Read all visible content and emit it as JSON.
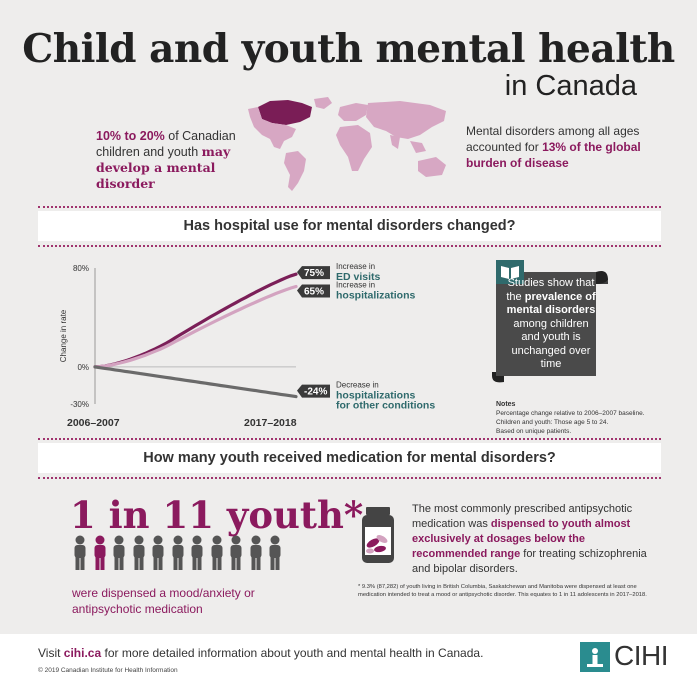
{
  "header": {
    "title": "Child and youth mental health",
    "subtitle": "in Canada"
  },
  "intro": {
    "left_part1": "10% to 20%",
    "left_part2": " of Canadian children and youth ",
    "left_part3": "may develop a mental disorder",
    "right_part1": "Mental disorders among all ages accounted for ",
    "right_part2": "13% of the global burden of disease"
  },
  "section1": {
    "heading": "Has hospital use for mental disorders changed?"
  },
  "chart_data": {
    "type": "line",
    "ylabel": "Change in rate",
    "ylim": [
      -30,
      80
    ],
    "yticks": [
      "80%",
      "0%",
      "-30%"
    ],
    "x": [
      "2006–2007",
      "2017–2018"
    ],
    "series": [
      {
        "name": "Increase in ED visits",
        "color": "#7b1f58",
        "end_value": 75,
        "label": "75%",
        "label_small": "Increase in",
        "label_big": "ED visits"
      },
      {
        "name": "Increase in hospitalizations",
        "color": "#d3a3c0",
        "end_value": 65,
        "label": "65%",
        "label_small": "Increase in",
        "label_big": "hospitalizations"
      },
      {
        "name": "Decrease in hospitalizations for other conditions",
        "color": "#6a6a6a",
        "end_value": -24,
        "label": "-24%",
        "label_small": "Decrease in",
        "label_big": "hospitalizations for other conditions"
      }
    ]
  },
  "scroll": {
    "text_pre": "Studies show that the ",
    "text_bold": "prevalence of mental disorders",
    "text_post": " among children and youth is unchanged over time"
  },
  "notes": {
    "heading": "Notes",
    "line1": "Percentage change relative to 2006–2007 baseline.",
    "line2": "Children and youth: Those age 5 to 24.",
    "line3": "Based on unique patients."
  },
  "section2": {
    "heading": "How many youth received medication for mental disorders?"
  },
  "youth": {
    "stat": "1 in 11 youth*",
    "sub": "were dispensed a mood/anxiety or antipsychotic medication",
    "people_total": 11,
    "people_highlight": 1
  },
  "medication": {
    "part1": "The most commonly prescribed antipsychotic medication was ",
    "part2": "dispensed to youth almost exclusively at dosages below the recommended range",
    "part3": " for treating schizophrenia and bipolar disorders."
  },
  "footnote": "* 9.3% (87,282) of youth living in British Columbia, Saskatchewan and Manitoba were dispensed at least one medication intended to treat a mood or antipsychotic disorder. This equates to 1 in 11 adolescents in 2017–2018.",
  "footer": {
    "visit_pre": "Visit ",
    "visit_link": "cihi.ca",
    "visit_post": " for more detailed information about youth and mental health in Canada.",
    "copyright": "© 2019 Canadian Institute for Health Information",
    "logo": "CIHI"
  },
  "colors": {
    "accent": "#8b1a5e",
    "teal": "#2f6a6c",
    "dark": "#3a3a3a"
  }
}
